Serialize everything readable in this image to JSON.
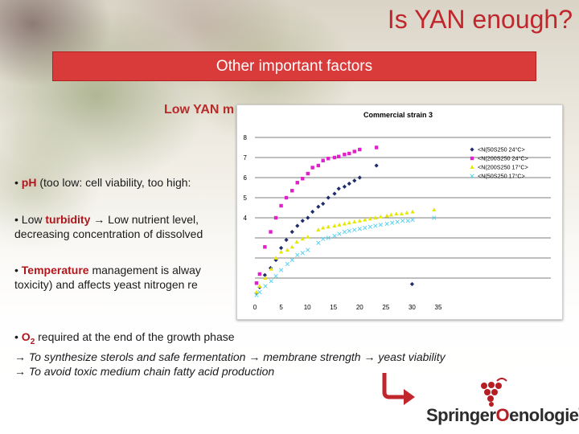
{
  "slide": {
    "title": "Is YAN enough?",
    "banner": "Other important factors",
    "subheading": "Low YAN m",
    "bullets": [
      {
        "prefix": "• ",
        "highlight": "pH",
        "rest": " (too low: cell viability, too high: "
      },
      {
        "prefix": "• Low ",
        "highlight": "turbidity",
        "arrow": "→",
        "rest": " Low nutrient level,",
        "line2": "decreasing concentration of dissolved"
      },
      {
        "prefix": "• ",
        "highlight": "Temperature",
        "rest": " management is alway",
        "line2": "toxicity) and affects yeast nitrogen re"
      }
    ],
    "o2": {
      "prefix": "• ",
      "highlight": "O",
      "sub": "2",
      "rest": " required at the end of the growth phase",
      "line1_a": "To synthesize sterols and safe fermentation",
      "line1_b": "membrane strength",
      "line1_c": "yeast viability",
      "line2": "To avoid toxic medium chain fatty acid production",
      "arrow": "→"
    }
  },
  "logo": {
    "text_a": "Springer",
    "text_o": "O",
    "text_b": "enologie",
    "reg": "®",
    "accent": "#b51f24"
  },
  "chart_data": {
    "type": "scatter",
    "title": "Commercial strain 3",
    "xlim": [
      0,
      35
    ],
    "ylim": [
      0,
      8
    ],
    "x_ticks": [
      0,
      5,
      10,
      15,
      20,
      25,
      30,
      35
    ],
    "y_ticks": [
      0,
      1,
      2,
      3,
      4,
      5,
      6,
      7,
      8
    ],
    "y_tick_labels": [
      "",
      "",
      "",
      "",
      "4",
      "5",
      "6",
      "7",
      "8"
    ],
    "legend_position": "right",
    "series": [
      {
        "name": "<N(50S250 24°C>",
        "color": "#1f2d6b",
        "marker": "diamond",
        "points": [
          [
            0.3,
            0.25
          ],
          [
            0.9,
            0.55
          ],
          [
            1.9,
            1.15
          ],
          [
            3.0,
            1.5
          ],
          [
            4.0,
            1.9
          ],
          [
            5.0,
            2.5
          ],
          [
            6.0,
            2.9
          ],
          [
            7.1,
            3.3
          ],
          [
            8.1,
            3.6
          ],
          [
            9.1,
            3.85
          ],
          [
            10.1,
            4.0
          ],
          [
            11.0,
            4.3
          ],
          [
            12.1,
            4.55
          ],
          [
            13.0,
            4.7
          ],
          [
            14.0,
            5.0
          ],
          [
            15.2,
            5.2
          ],
          [
            16.0,
            5.45
          ],
          [
            17.1,
            5.55
          ],
          [
            18.0,
            5.7
          ],
          [
            19.0,
            5.85
          ],
          [
            20.0,
            6.0
          ],
          [
            23.2,
            6.6
          ],
          [
            30.0,
            0.7
          ]
        ]
      },
      {
        "name": "<N(200S250 24°C>",
        "color": "#e020c8",
        "marker": "square",
        "points": [
          [
            0.3,
            0.75
          ],
          [
            0.9,
            1.2
          ],
          [
            1.9,
            2.55
          ],
          [
            3.0,
            3.3
          ],
          [
            4.0,
            4.0
          ],
          [
            5.0,
            4.6
          ],
          [
            6.0,
            5.0
          ],
          [
            7.1,
            5.35
          ],
          [
            8.1,
            5.75
          ],
          [
            9.1,
            5.95
          ],
          [
            10.1,
            6.2
          ],
          [
            11.0,
            6.5
          ],
          [
            12.1,
            6.6
          ],
          [
            13.0,
            6.85
          ],
          [
            14.0,
            6.95
          ],
          [
            15.2,
            7.0
          ],
          [
            16.0,
            7.05
          ],
          [
            17.1,
            7.15
          ],
          [
            18.0,
            7.2
          ],
          [
            19.0,
            7.3
          ],
          [
            20.0,
            7.4
          ],
          [
            23.2,
            7.5
          ]
        ]
      },
      {
        "name": "<N(200S250 17°C>",
        "color": "#e7e700",
        "marker": "triangle",
        "points": [
          [
            0.3,
            0.3
          ],
          [
            0.9,
            0.6
          ],
          [
            2.0,
            1.0
          ],
          [
            3.1,
            1.45
          ],
          [
            4.0,
            2.0
          ],
          [
            5.0,
            2.3
          ],
          [
            6.2,
            2.4
          ],
          [
            7.1,
            2.55
          ],
          [
            8.0,
            2.8
          ],
          [
            9.1,
            2.95
          ],
          [
            10.1,
            3.05
          ],
          [
            12.1,
            3.4
          ],
          [
            13.0,
            3.5
          ],
          [
            14.0,
            3.55
          ],
          [
            15.2,
            3.6
          ],
          [
            16.1,
            3.65
          ],
          [
            17.1,
            3.7
          ],
          [
            18.0,
            3.75
          ],
          [
            19.0,
            3.8
          ],
          [
            20.0,
            3.85
          ],
          [
            21.0,
            3.9
          ],
          [
            22.0,
            3.95
          ],
          [
            23.0,
            4.0
          ],
          [
            24.0,
            4.05
          ],
          [
            25.2,
            4.1
          ],
          [
            26.0,
            4.15
          ],
          [
            27.0,
            4.2
          ],
          [
            28.0,
            4.2
          ],
          [
            29.0,
            4.25
          ],
          [
            30.1,
            4.3
          ],
          [
            34.2,
            4.4
          ]
        ]
      },
      {
        "name": "<N(50S250 17°C>",
        "color": "#54d0f0",
        "marker": "x",
        "points": [
          [
            0.3,
            0.15
          ],
          [
            0.9,
            0.3
          ],
          [
            2.0,
            0.6
          ],
          [
            3.1,
            0.85
          ],
          [
            4.0,
            1.1
          ],
          [
            5.0,
            1.4
          ],
          [
            6.2,
            1.7
          ],
          [
            7.1,
            1.9
          ],
          [
            8.1,
            2.15
          ],
          [
            9.1,
            2.25
          ],
          [
            10.1,
            2.4
          ],
          [
            12.1,
            2.75
          ],
          [
            13.0,
            2.95
          ],
          [
            14.0,
            3.0
          ],
          [
            15.2,
            3.1
          ],
          [
            16.1,
            3.2
          ],
          [
            17.1,
            3.3
          ],
          [
            18.0,
            3.35
          ],
          [
            19.0,
            3.4
          ],
          [
            20.0,
            3.45
          ],
          [
            21.0,
            3.5
          ],
          [
            22.0,
            3.55
          ],
          [
            23.0,
            3.6
          ],
          [
            24.0,
            3.65
          ],
          [
            25.2,
            3.7
          ],
          [
            26.2,
            3.75
          ],
          [
            27.2,
            3.8
          ],
          [
            28.2,
            3.85
          ],
          [
            29.2,
            3.85
          ],
          [
            30.1,
            3.9
          ],
          [
            34.2,
            4.0
          ]
        ]
      }
    ]
  }
}
